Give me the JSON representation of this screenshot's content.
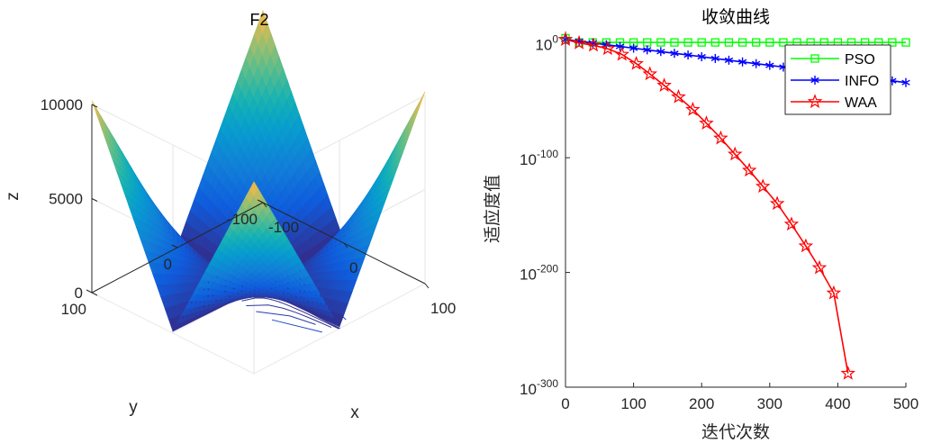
{
  "chart_data": [
    {
      "type": "surface3d",
      "title": "F2",
      "xlabel": "x",
      "ylabel": "y",
      "zlabel": "z",
      "xlim": [
        -100,
        100
      ],
      "ylim": [
        -100,
        100
      ],
      "zlim": [
        0,
        10000
      ],
      "x_ticks": [
        "-100",
        "0",
        "100"
      ],
      "y_ticks": [
        "-100",
        "0",
        "100"
      ],
      "z_ticks": [
        "0",
        "5000",
        "10000"
      ],
      "z_formula": "|x|+|y|+|x|*|y|",
      "z_min": 0,
      "z_max": 10200,
      "colormap": "parula",
      "contour_on_floor": true
    },
    {
      "type": "line",
      "yscale": "log",
      "title": "收敛曲线",
      "xlabel": "迭代次数",
      "ylabel": "适应度值",
      "xlim": [
        0,
        500
      ],
      "ylim_exponent": [
        -300,
        10
      ],
      "x_ticks": [
        "0",
        "100",
        "200",
        "300",
        "400",
        "500"
      ],
      "y_tick_labels": [
        {
          "exp": 0,
          "base": "10",
          "sup": "0"
        },
        {
          "exp": -100,
          "base": "10",
          "sup": "-100"
        },
        {
          "exp": -200,
          "base": "10",
          "sup": "-200"
        },
        {
          "exp": -300,
          "base": "10",
          "sup": "-300"
        }
      ],
      "legend_position": "top-right",
      "series": [
        {
          "name": "PSO",
          "color": "#00ff00",
          "marker": "square",
          "x": [
            0,
            20,
            40,
            60,
            80,
            100,
            120,
            140,
            160,
            180,
            200,
            220,
            240,
            260,
            280,
            300,
            320,
            340,
            360,
            380,
            400,
            420,
            440,
            460,
            480,
            500
          ],
          "log10_y": [
            4.2,
            0.5,
            0.5,
            0.5,
            0.5,
            0.5,
            0.5,
            0.5,
            0.5,
            0.5,
            0.5,
            0.5,
            0.5,
            0.5,
            0.5,
            0.5,
            0.5,
            0.5,
            0.5,
            0.5,
            0.5,
            0.5,
            0.5,
            0.5,
            0.5,
            0.5
          ]
        },
        {
          "name": "INFO",
          "color": "#0000ff",
          "marker": "asterisk",
          "x": [
            0,
            20,
            40,
            60,
            80,
            100,
            120,
            140,
            160,
            180,
            200,
            220,
            240,
            260,
            280,
            300,
            320,
            340,
            360,
            380,
            400,
            420,
            440,
            460,
            480,
            500
          ],
          "log10_y": [
            3,
            1.5,
            0,
            -1.5,
            -3,
            -4.5,
            -6,
            -7.5,
            -9,
            -10.5,
            -12,
            -13.5,
            -15,
            -16.5,
            -18,
            -19.5,
            -21,
            -22.5,
            -24,
            -25.5,
            -27,
            -28.5,
            -30,
            -31.5,
            -33,
            -34.5
          ]
        },
        {
          "name": "WAA",
          "color": "#ff0000",
          "marker": "pentagram",
          "x": [
            0,
            20,
            41,
            62,
            83,
            104,
            124,
            145,
            166,
            187,
            207,
            228,
            249,
            270,
            290,
            311,
            332,
            353,
            373,
            394,
            415
          ],
          "log10_y": [
            3,
            0,
            -2,
            -5,
            -10,
            -18,
            -27,
            -37,
            -47,
            -58,
            -70,
            -83,
            -97,
            -111,
            -125,
            -140,
            -158,
            -177,
            -196,
            -218,
            -288
          ]
        }
      ]
    }
  ]
}
